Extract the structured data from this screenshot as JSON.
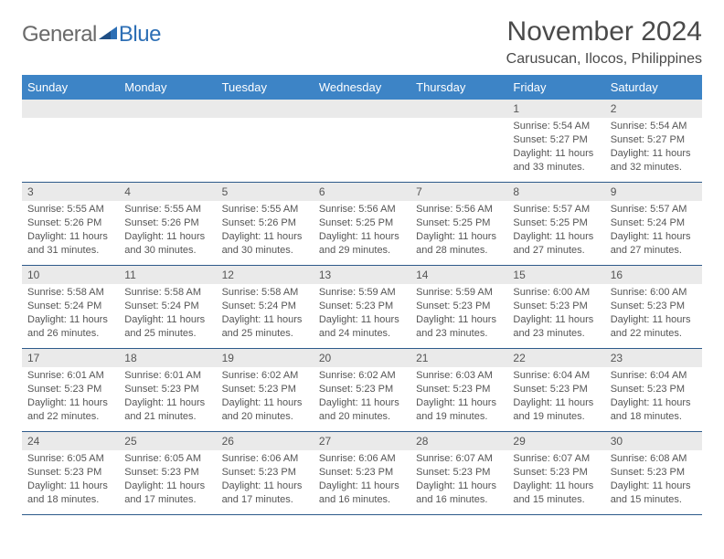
{
  "logo": {
    "text1": "General",
    "text2": "Blue"
  },
  "title": "November 2024",
  "location": "Carusucan, Ilocos, Philippines",
  "colors": {
    "header_bg": "#3d84c6",
    "header_fg": "#ffffff",
    "daynum_bg": "#eaeaea",
    "row_border": "#2d5a8a",
    "logo_gray": "#6a6a6a",
    "logo_blue": "#2d6fb5",
    "body_text": "#555555",
    "page_bg": "#ffffff"
  },
  "day_headers": [
    "Sunday",
    "Monday",
    "Tuesday",
    "Wednesday",
    "Thursday",
    "Friday",
    "Saturday"
  ],
  "weeks": [
    [
      {
        "n": "",
        "sunrise": "",
        "sunset": "",
        "daylight": ""
      },
      {
        "n": "",
        "sunrise": "",
        "sunset": "",
        "daylight": ""
      },
      {
        "n": "",
        "sunrise": "",
        "sunset": "",
        "daylight": ""
      },
      {
        "n": "",
        "sunrise": "",
        "sunset": "",
        "daylight": ""
      },
      {
        "n": "",
        "sunrise": "",
        "sunset": "",
        "daylight": ""
      },
      {
        "n": "1",
        "sunrise": "Sunrise: 5:54 AM",
        "sunset": "Sunset: 5:27 PM",
        "daylight": "Daylight: 11 hours and 33 minutes."
      },
      {
        "n": "2",
        "sunrise": "Sunrise: 5:54 AM",
        "sunset": "Sunset: 5:27 PM",
        "daylight": "Daylight: 11 hours and 32 minutes."
      }
    ],
    [
      {
        "n": "3",
        "sunrise": "Sunrise: 5:55 AM",
        "sunset": "Sunset: 5:26 PM",
        "daylight": "Daylight: 11 hours and 31 minutes."
      },
      {
        "n": "4",
        "sunrise": "Sunrise: 5:55 AM",
        "sunset": "Sunset: 5:26 PM",
        "daylight": "Daylight: 11 hours and 30 minutes."
      },
      {
        "n": "5",
        "sunrise": "Sunrise: 5:55 AM",
        "sunset": "Sunset: 5:26 PM",
        "daylight": "Daylight: 11 hours and 30 minutes."
      },
      {
        "n": "6",
        "sunrise": "Sunrise: 5:56 AM",
        "sunset": "Sunset: 5:25 PM",
        "daylight": "Daylight: 11 hours and 29 minutes."
      },
      {
        "n": "7",
        "sunrise": "Sunrise: 5:56 AM",
        "sunset": "Sunset: 5:25 PM",
        "daylight": "Daylight: 11 hours and 28 minutes."
      },
      {
        "n": "8",
        "sunrise": "Sunrise: 5:57 AM",
        "sunset": "Sunset: 5:25 PM",
        "daylight": "Daylight: 11 hours and 27 minutes."
      },
      {
        "n": "9",
        "sunrise": "Sunrise: 5:57 AM",
        "sunset": "Sunset: 5:24 PM",
        "daylight": "Daylight: 11 hours and 27 minutes."
      }
    ],
    [
      {
        "n": "10",
        "sunrise": "Sunrise: 5:58 AM",
        "sunset": "Sunset: 5:24 PM",
        "daylight": "Daylight: 11 hours and 26 minutes."
      },
      {
        "n": "11",
        "sunrise": "Sunrise: 5:58 AM",
        "sunset": "Sunset: 5:24 PM",
        "daylight": "Daylight: 11 hours and 25 minutes."
      },
      {
        "n": "12",
        "sunrise": "Sunrise: 5:58 AM",
        "sunset": "Sunset: 5:24 PM",
        "daylight": "Daylight: 11 hours and 25 minutes."
      },
      {
        "n": "13",
        "sunrise": "Sunrise: 5:59 AM",
        "sunset": "Sunset: 5:23 PM",
        "daylight": "Daylight: 11 hours and 24 minutes."
      },
      {
        "n": "14",
        "sunrise": "Sunrise: 5:59 AM",
        "sunset": "Sunset: 5:23 PM",
        "daylight": "Daylight: 11 hours and 23 minutes."
      },
      {
        "n": "15",
        "sunrise": "Sunrise: 6:00 AM",
        "sunset": "Sunset: 5:23 PM",
        "daylight": "Daylight: 11 hours and 23 minutes."
      },
      {
        "n": "16",
        "sunrise": "Sunrise: 6:00 AM",
        "sunset": "Sunset: 5:23 PM",
        "daylight": "Daylight: 11 hours and 22 minutes."
      }
    ],
    [
      {
        "n": "17",
        "sunrise": "Sunrise: 6:01 AM",
        "sunset": "Sunset: 5:23 PM",
        "daylight": "Daylight: 11 hours and 22 minutes."
      },
      {
        "n": "18",
        "sunrise": "Sunrise: 6:01 AM",
        "sunset": "Sunset: 5:23 PM",
        "daylight": "Daylight: 11 hours and 21 minutes."
      },
      {
        "n": "19",
        "sunrise": "Sunrise: 6:02 AM",
        "sunset": "Sunset: 5:23 PM",
        "daylight": "Daylight: 11 hours and 20 minutes."
      },
      {
        "n": "20",
        "sunrise": "Sunrise: 6:02 AM",
        "sunset": "Sunset: 5:23 PM",
        "daylight": "Daylight: 11 hours and 20 minutes."
      },
      {
        "n": "21",
        "sunrise": "Sunrise: 6:03 AM",
        "sunset": "Sunset: 5:23 PM",
        "daylight": "Daylight: 11 hours and 19 minutes."
      },
      {
        "n": "22",
        "sunrise": "Sunrise: 6:04 AM",
        "sunset": "Sunset: 5:23 PM",
        "daylight": "Daylight: 11 hours and 19 minutes."
      },
      {
        "n": "23",
        "sunrise": "Sunrise: 6:04 AM",
        "sunset": "Sunset: 5:23 PM",
        "daylight": "Daylight: 11 hours and 18 minutes."
      }
    ],
    [
      {
        "n": "24",
        "sunrise": "Sunrise: 6:05 AM",
        "sunset": "Sunset: 5:23 PM",
        "daylight": "Daylight: 11 hours and 18 minutes."
      },
      {
        "n": "25",
        "sunrise": "Sunrise: 6:05 AM",
        "sunset": "Sunset: 5:23 PM",
        "daylight": "Daylight: 11 hours and 17 minutes."
      },
      {
        "n": "26",
        "sunrise": "Sunrise: 6:06 AM",
        "sunset": "Sunset: 5:23 PM",
        "daylight": "Daylight: 11 hours and 17 minutes."
      },
      {
        "n": "27",
        "sunrise": "Sunrise: 6:06 AM",
        "sunset": "Sunset: 5:23 PM",
        "daylight": "Daylight: 11 hours and 16 minutes."
      },
      {
        "n": "28",
        "sunrise": "Sunrise: 6:07 AM",
        "sunset": "Sunset: 5:23 PM",
        "daylight": "Daylight: 11 hours and 16 minutes."
      },
      {
        "n": "29",
        "sunrise": "Sunrise: 6:07 AM",
        "sunset": "Sunset: 5:23 PM",
        "daylight": "Daylight: 11 hours and 15 minutes."
      },
      {
        "n": "30",
        "sunrise": "Sunrise: 6:08 AM",
        "sunset": "Sunset: 5:23 PM",
        "daylight": "Daylight: 11 hours and 15 minutes."
      }
    ]
  ]
}
